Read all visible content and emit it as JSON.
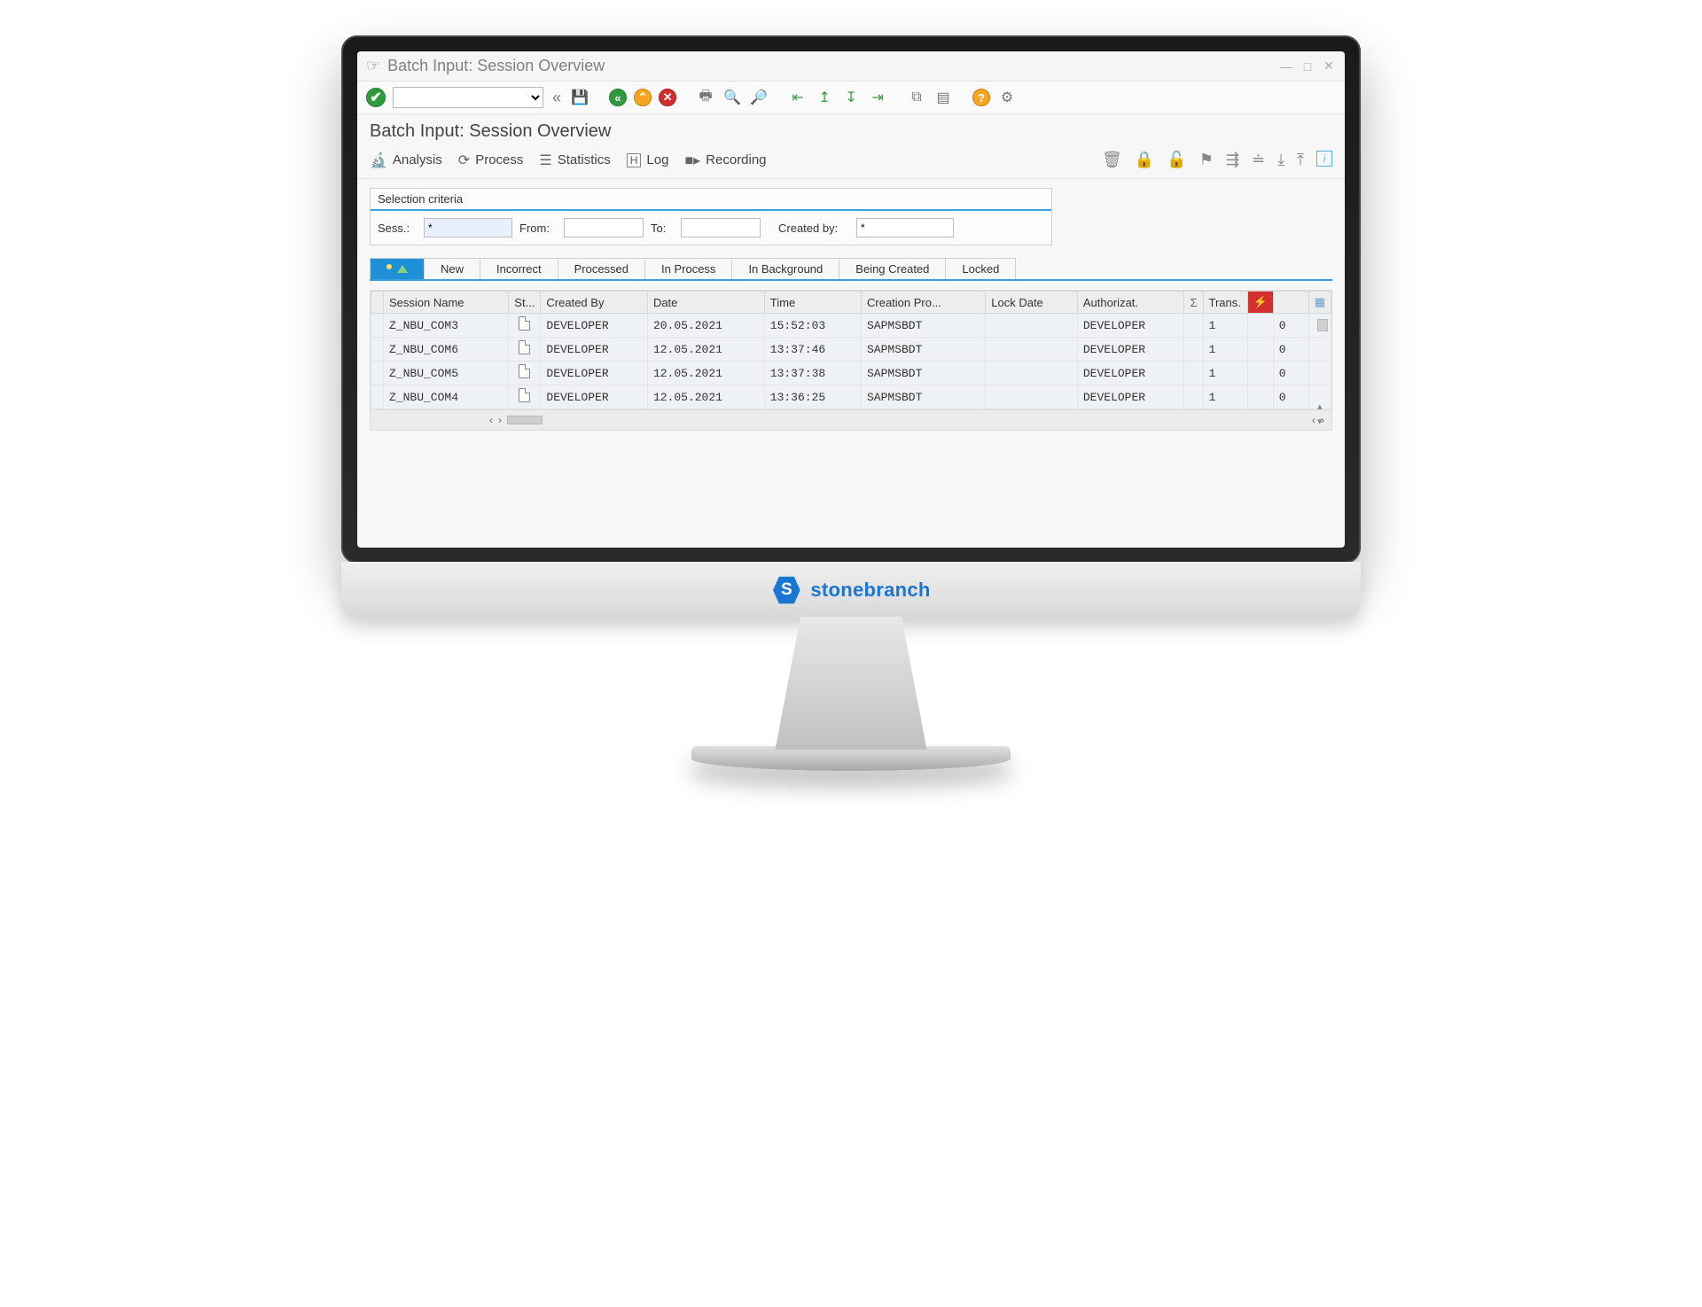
{
  "window": {
    "title": "Batch Input: Session Overview"
  },
  "page_title": "Batch Input: Session Overview",
  "actionbar": {
    "analysis": "Analysis",
    "process": "Process",
    "statistics": "Statistics",
    "log": "Log",
    "recording": "Recording"
  },
  "selection": {
    "panel_title": "Selection criteria",
    "sess_label": "Sess.:",
    "sess_value": "*",
    "from_label": "From:",
    "from_value": "",
    "to_label": "To:",
    "to_value": "",
    "createdby_label": "Created by:",
    "createdby_value": "*"
  },
  "tabs": {
    "new": "New",
    "incorrect": "Incorrect",
    "processed": "Processed",
    "inprocess": "In Process",
    "background": "In Background",
    "beingcreated": "Being Created",
    "locked": "Locked"
  },
  "table": {
    "columns": {
      "session": "Session Name",
      "status": "St...",
      "createdby": "Created By",
      "date": "Date",
      "time": "Time",
      "creationpro": "Creation Pro...",
      "lockdate": "Lock Date",
      "authorizat": "Authorizat.",
      "sum": "Σ",
      "trans": "Trans.",
      "bolt": "⚡",
      "layout": "≡"
    },
    "rows": [
      {
        "session": "Z_NBU_COM3",
        "createdby": "DEVELOPER",
        "date": "20.05.2021",
        "time": "15:52:03",
        "prog": "SAPMSBDT",
        "lock": "",
        "auth": "DEVELOPER",
        "trans": "1",
        "err": "0"
      },
      {
        "session": "Z_NBU_COM6",
        "createdby": "DEVELOPER",
        "date": "12.05.2021",
        "time": "13:37:46",
        "prog": "SAPMSBDT",
        "lock": "",
        "auth": "DEVELOPER",
        "trans": "1",
        "err": "0"
      },
      {
        "session": "Z_NBU_COM5",
        "createdby": "DEVELOPER",
        "date": "12.05.2021",
        "time": "13:37:38",
        "prog": "SAPMSBDT",
        "lock": "",
        "auth": "DEVELOPER",
        "trans": "1",
        "err": "0"
      },
      {
        "session": "Z_NBU_COM4",
        "createdby": "DEVELOPER",
        "date": "12.05.2021",
        "time": "13:36:25",
        "prog": "SAPMSBDT",
        "lock": "",
        "auth": "DEVELOPER",
        "trans": "1",
        "err": "0"
      }
    ]
  },
  "branding": {
    "name": "stonebranch",
    "badge": "S"
  }
}
